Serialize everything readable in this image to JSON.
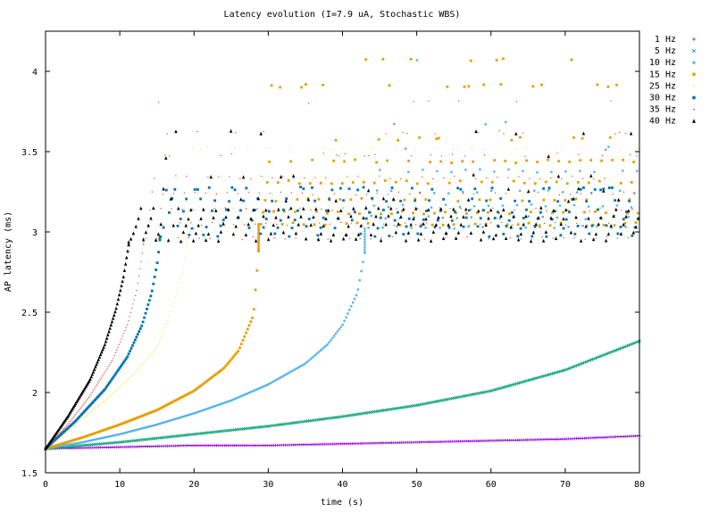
{
  "chart_data": {
    "type": "scatter",
    "title": "Latency evolution (I=7.9 uA, Stochastic WBS)",
    "xlabel": "time (s)",
    "ylabel": "AP latency (ms)",
    "xlim": [
      0,
      80
    ],
    "ylim": [
      1.5,
      4.25
    ],
    "xticks": [
      0,
      10,
      20,
      30,
      40,
      50,
      60,
      70,
      80
    ],
    "yticks": [
      1.5,
      2,
      2.5,
      3,
      3.5,
      4
    ],
    "xtick_labels": [
      "0",
      "10",
      "20",
      "30",
      "40",
      "50",
      "60",
      "70",
      "80"
    ],
    "ytick_labels": [
      "1.5",
      "2",
      "2.5",
      "3",
      "3.5",
      "4"
    ],
    "grid": false,
    "legend_position": "top-right-outside",
    "series": [
      {
        "name": "1 Hz",
        "color": "#9400d3",
        "marker": "plus",
        "curve": [
          [
            0,
            1.65
          ],
          [
            10,
            1.66
          ],
          [
            20,
            1.67
          ],
          [
            30,
            1.67
          ],
          [
            40,
            1.68
          ],
          [
            50,
            1.69
          ],
          [
            60,
            1.7
          ],
          [
            70,
            1.71
          ],
          [
            80,
            1.73
          ]
        ],
        "plateau_start": null,
        "plateau_levels": []
      },
      {
        "name": "5 Hz",
        "color": "#009e73",
        "marker": "cross",
        "curve": [
          [
            0,
            1.65
          ],
          [
            10,
            1.69
          ],
          [
            20,
            1.74
          ],
          [
            30,
            1.79
          ],
          [
            40,
            1.85
          ],
          [
            50,
            1.92
          ],
          [
            60,
            2.01
          ],
          [
            70,
            2.14
          ],
          [
            80,
            2.32
          ]
        ],
        "plateau_start": null,
        "plateau_levels": []
      },
      {
        "name": "10 Hz",
        "color": "#56b4e9",
        "marker": "square-small",
        "curve": [
          [
            0,
            1.65
          ],
          [
            5,
            1.69
          ],
          [
            10,
            1.74
          ],
          [
            15,
            1.8
          ],
          [
            20,
            1.87
          ],
          [
            25,
            1.95
          ],
          [
            30,
            2.05
          ],
          [
            35,
            2.18
          ],
          [
            38,
            2.3
          ],
          [
            40,
            2.42
          ],
          [
            42,
            2.62
          ],
          [
            43,
            2.87
          ]
        ],
        "plateau_start": 43.5,
        "plateau_levels": [
          3.03,
          3.09,
          3.16,
          3.25,
          3.38,
          3.52,
          3.68,
          4.07
        ]
      },
      {
        "name": "15 Hz",
        "color": "#e69f00",
        "marker": "square",
        "curve": [
          [
            0,
            1.65
          ],
          [
            5,
            1.72
          ],
          [
            10,
            1.8
          ],
          [
            15,
            1.89
          ],
          [
            20,
            2.01
          ],
          [
            24,
            2.15
          ],
          [
            26,
            2.26
          ],
          [
            28,
            2.48
          ],
          [
            28.7,
            2.88
          ]
        ],
        "plateau_start": 29,
        "plateau_levels": [
          3.05,
          3.12,
          3.2,
          3.31,
          3.44,
          3.58,
          3.91,
          4.07
        ]
      },
      {
        "name": "25 Hz",
        "color": "#f0e442",
        "marker": "dot",
        "curve": [
          [
            0,
            1.65
          ],
          [
            4,
            1.8
          ],
          [
            8,
            1.95
          ],
          [
            12,
            2.12
          ],
          [
            15,
            2.28
          ],
          [
            16.5,
            2.45
          ],
          [
            17.5,
            2.6
          ],
          [
            18.5,
            2.75
          ],
          [
            19,
            2.9
          ]
        ],
        "plateau_start": 19.5,
        "plateau_levels": [
          3.0,
          3.07,
          3.14,
          3.23,
          3.33,
          3.52
        ]
      },
      {
        "name": "30 Hz",
        "color": "#0072b2",
        "marker": "square",
        "curve": [
          [
            0,
            1.65
          ],
          [
            4,
            1.82
          ],
          [
            8,
            2.02
          ],
          [
            11,
            2.22
          ],
          [
            13,
            2.42
          ],
          [
            14.3,
            2.62
          ],
          [
            15.1,
            2.82
          ],
          [
            15.4,
            2.95
          ]
        ],
        "plateau_start": 15.5,
        "plateau_levels": [
          2.98,
          3.03,
          3.08,
          3.13,
          3.2,
          3.27
        ]
      },
      {
        "name": "35 Hz",
        "color": "#e51e10",
        "marker": "dot",
        "curve": [
          [
            0,
            1.65
          ],
          [
            3,
            1.8
          ],
          [
            6,
            1.98
          ],
          [
            9,
            2.2
          ],
          [
            11,
            2.42
          ],
          [
            12.2,
            2.62
          ],
          [
            12.9,
            2.82
          ],
          [
            13.2,
            2.92
          ]
        ],
        "plateau_start": 13.5,
        "plateau_levels": [
          2.96,
          3.05,
          3.14,
          3.24,
          3.34,
          3.48,
          3.62,
          3.81
        ]
      },
      {
        "name": "40 Hz",
        "color": "#000000",
        "marker": "triangle",
        "curve": [
          [
            0,
            1.65
          ],
          [
            3,
            1.85
          ],
          [
            6,
            2.08
          ],
          [
            8,
            2.3
          ],
          [
            9.5,
            2.52
          ],
          [
            10.5,
            2.72
          ],
          [
            11.2,
            2.92
          ]
        ],
        "plateau_start": 11.5,
        "plateau_levels": [
          2.95,
          2.99,
          3.04,
          3.09,
          3.14,
          3.2,
          3.26,
          3.35,
          3.47,
          3.62
        ]
      }
    ]
  }
}
